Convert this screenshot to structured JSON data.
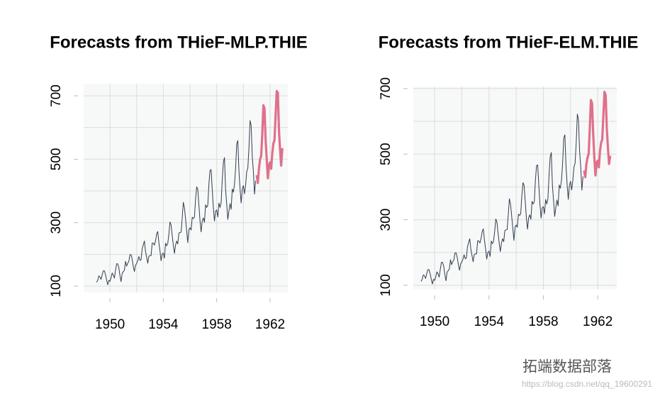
{
  "chart_data": [
    {
      "type": "line",
      "title": "Forecasts from THieF-MLP.THIE",
      "xlim": [
        1948.03,
        1963.33
      ],
      "ylim": [
        80,
        738
      ],
      "xticks": [
        1950,
        1954,
        1958,
        1962
      ],
      "yticks": [
        100,
        300,
        500,
        700
      ],
      "grid": true,
      "series": [
        {
          "color": "#2f3e4e",
          "x": [
            1949,
            1949.083,
            1949.167,
            1949.25,
            1949.333,
            1949.417,
            1949.5,
            1949.583,
            1949.667,
            1949.75,
            1949.833,
            1949.917,
            1950,
            1950.083,
            1950.167,
            1950.25,
            1950.333,
            1950.417,
            1950.5,
            1950.583,
            1950.667,
            1950.75,
            1950.833,
            1950.917,
            1951,
            1951.083,
            1951.167,
            1951.25,
            1951.333,
            1951.417,
            1951.5,
            1951.583,
            1951.667,
            1951.75,
            1951.833,
            1951.917,
            1952,
            1952.083,
            1952.167,
            1952.25,
            1952.333,
            1952.417,
            1952.5,
            1952.583,
            1952.667,
            1952.75,
            1952.833,
            1952.917,
            1953,
            1953.083,
            1953.167,
            1953.25,
            1953.333,
            1953.417,
            1953.5,
            1953.583,
            1953.667,
            1953.75,
            1953.833,
            1953.917,
            1954,
            1954.083,
            1954.167,
            1954.25,
            1954.333,
            1954.417,
            1954.5,
            1954.583,
            1954.667,
            1954.75,
            1954.833,
            1954.917,
            1955,
            1955.083,
            1955.167,
            1955.25,
            1955.333,
            1955.417,
            1955.5,
            1955.583,
            1955.667,
            1955.75,
            1955.833,
            1955.917,
            1956,
            1956.083,
            1956.167,
            1956.25,
            1956.333,
            1956.417,
            1956.5,
            1956.583,
            1956.667,
            1956.75,
            1956.833,
            1956.917,
            1957,
            1957.083,
            1957.167,
            1957.25,
            1957.333,
            1957.417,
            1957.5,
            1957.583,
            1957.667,
            1957.75,
            1957.833,
            1957.917,
            1958,
            1958.083,
            1958.167,
            1958.25,
            1958.333,
            1958.417,
            1958.5,
            1958.583,
            1958.667,
            1958.75,
            1958.833,
            1958.917,
            1959,
            1959.083,
            1959.167,
            1959.25,
            1959.333,
            1959.417,
            1959.5,
            1959.583,
            1959.667,
            1959.75,
            1959.833,
            1959.917,
            1960,
            1960.083,
            1960.167,
            1960.25,
            1960.333,
            1960.417,
            1960.5,
            1960.583,
            1960.667,
            1960.75,
            1960.833,
            1960.917
          ],
          "values": [
            112,
            118,
            132,
            129,
            121,
            135,
            148,
            148,
            136,
            119,
            104,
            118,
            115,
            126,
            141,
            135,
            125,
            149,
            170,
            170,
            158,
            133,
            114,
            140,
            145,
            150,
            178,
            163,
            172,
            178,
            199,
            199,
            184,
            162,
            146,
            166,
            171,
            180,
            193,
            181,
            183,
            218,
            230,
            242,
            209,
            191,
            172,
            194,
            196,
            196,
            236,
            235,
            229,
            243,
            264,
            272,
            237,
            211,
            180,
            201,
            204,
            188,
            235,
            227,
            234,
            264,
            302,
            293,
            259,
            229,
            203,
            229,
            242,
            233,
            267,
            269,
            270,
            315,
            364,
            347,
            312,
            274,
            237,
            278,
            284,
            277,
            317,
            313,
            318,
            374,
            413,
            405,
            355,
            306,
            271,
            306,
            315,
            301,
            356,
            348,
            355,
            422,
            465,
            467,
            404,
            347,
            305,
            336,
            340,
            318,
            362,
            348,
            363,
            435,
            491,
            505,
            404,
            359,
            310,
            337,
            360,
            342,
            406,
            396,
            420,
            472,
            548,
            559,
            463,
            407,
            362,
            405,
            417,
            391,
            419,
            461,
            472,
            535,
            622,
            606,
            508,
            461,
            390,
            432
          ]
        },
        {
          "color": "#e0708a",
          "x": [
            1961,
            1961.083,
            1961.167,
            1961.25,
            1961.333,
            1961.417,
            1961.5,
            1961.583,
            1961.667,
            1961.75,
            1961.833,
            1961.917,
            1962,
            1962.083,
            1962.167,
            1962.25,
            1962.333,
            1962.417,
            1962.5,
            1962.583,
            1962.667,
            1962.75,
            1962.833,
            1962.917
          ],
          "values": [
            450,
            425,
            470,
            500,
            510,
            580,
            670,
            660,
            560,
            500,
            440,
            480,
            490,
            470,
            520,
            550,
            560,
            640,
            715,
            710,
            590,
            530,
            480,
            535
          ]
        }
      ]
    },
    {
      "type": "line",
      "title": "Forecasts from THieF-ELM.THIE",
      "xlim": [
        1948.43,
        1963.4
      ],
      "ylim": [
        87,
        706
      ],
      "xticks": [
        1950,
        1954,
        1958,
        1962
      ],
      "yticks": [
        100,
        300,
        500,
        700
      ],
      "grid": true,
      "series": [
        {
          "color": "#2f3e4e",
          "x": [
            1949,
            1949.083,
            1949.167,
            1949.25,
            1949.333,
            1949.417,
            1949.5,
            1949.583,
            1949.667,
            1949.75,
            1949.833,
            1949.917,
            1950,
            1950.083,
            1950.167,
            1950.25,
            1950.333,
            1950.417,
            1950.5,
            1950.583,
            1950.667,
            1950.75,
            1950.833,
            1950.917,
            1951,
            1951.083,
            1951.167,
            1951.25,
            1951.333,
            1951.417,
            1951.5,
            1951.583,
            1951.667,
            1951.75,
            1951.833,
            1951.917,
            1952,
            1952.083,
            1952.167,
            1952.25,
            1952.333,
            1952.417,
            1952.5,
            1952.583,
            1952.667,
            1952.75,
            1952.833,
            1952.917,
            1953,
            1953.083,
            1953.167,
            1953.25,
            1953.333,
            1953.417,
            1953.5,
            1953.583,
            1953.667,
            1953.75,
            1953.833,
            1953.917,
            1954,
            1954.083,
            1954.167,
            1954.25,
            1954.333,
            1954.417,
            1954.5,
            1954.583,
            1954.667,
            1954.75,
            1954.833,
            1954.917,
            1955,
            1955.083,
            1955.167,
            1955.25,
            1955.333,
            1955.417,
            1955.5,
            1955.583,
            1955.667,
            1955.75,
            1955.833,
            1955.917,
            1956,
            1956.083,
            1956.167,
            1956.25,
            1956.333,
            1956.417,
            1956.5,
            1956.583,
            1956.667,
            1956.75,
            1956.833,
            1956.917,
            1957,
            1957.083,
            1957.167,
            1957.25,
            1957.333,
            1957.417,
            1957.5,
            1957.583,
            1957.667,
            1957.75,
            1957.833,
            1957.917,
            1958,
            1958.083,
            1958.167,
            1958.25,
            1958.333,
            1958.417,
            1958.5,
            1958.583,
            1958.667,
            1958.75,
            1958.833,
            1958.917,
            1959,
            1959.083,
            1959.167,
            1959.25,
            1959.333,
            1959.417,
            1959.5,
            1959.583,
            1959.667,
            1959.75,
            1959.833,
            1959.917,
            1960,
            1960.083,
            1960.167,
            1960.25,
            1960.333,
            1960.417,
            1960.5,
            1960.583,
            1960.667,
            1960.75,
            1960.833,
            1960.917
          ],
          "values": [
            112,
            118,
            132,
            129,
            121,
            135,
            148,
            148,
            136,
            119,
            104,
            118,
            115,
            126,
            141,
            135,
            125,
            149,
            170,
            170,
            158,
            133,
            114,
            140,
            145,
            150,
            178,
            163,
            172,
            178,
            199,
            199,
            184,
            162,
            146,
            166,
            171,
            180,
            193,
            181,
            183,
            218,
            230,
            242,
            209,
            191,
            172,
            194,
            196,
            196,
            236,
            235,
            229,
            243,
            264,
            272,
            237,
            211,
            180,
            201,
            204,
            188,
            235,
            227,
            234,
            264,
            302,
            293,
            259,
            229,
            203,
            229,
            242,
            233,
            267,
            269,
            270,
            315,
            364,
            347,
            312,
            274,
            237,
            278,
            284,
            277,
            317,
            313,
            318,
            374,
            413,
            405,
            355,
            306,
            271,
            306,
            315,
            301,
            356,
            348,
            355,
            422,
            465,
            467,
            404,
            347,
            305,
            336,
            340,
            318,
            362,
            348,
            363,
            435,
            491,
            505,
            404,
            359,
            310,
            337,
            360,
            342,
            406,
            396,
            420,
            472,
            548,
            559,
            463,
            407,
            362,
            405,
            417,
            391,
            419,
            461,
            472,
            535,
            622,
            606,
            508,
            461,
            390,
            432
          ]
        },
        {
          "color": "#e0708a",
          "x": [
            1961,
            1961.083,
            1961.167,
            1961.25,
            1961.333,
            1961.417,
            1961.5,
            1961.583,
            1961.667,
            1961.75,
            1961.833,
            1961.917,
            1962,
            1962.083,
            1962.167,
            1962.25,
            1962.333,
            1962.417,
            1962.5,
            1962.583,
            1962.667,
            1962.75,
            1962.833,
            1962.917
          ],
          "values": [
            450,
            430,
            470,
            490,
            500,
            580,
            665,
            655,
            560,
            490,
            435,
            475,
            480,
            460,
            510,
            535,
            545,
            620,
            690,
            680,
            580,
            520,
            470,
            495
          ]
        }
      ]
    }
  ],
  "watermark": {
    "brand": "拓端数据部落",
    "url": "https://blog.csdn.net/qq_19600291"
  }
}
